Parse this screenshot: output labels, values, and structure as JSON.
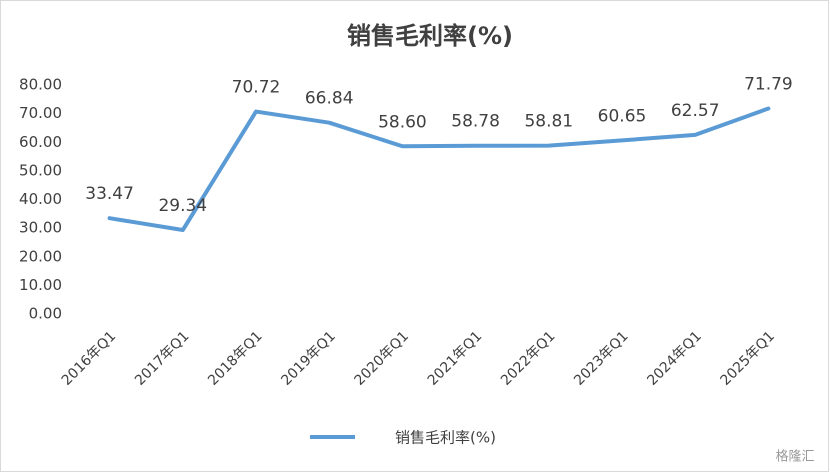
{
  "chart_data": {
    "type": "line",
    "title": "销售毛利率(%)",
    "categories": [
      "2016年Q1",
      "2017年Q1",
      "2018年Q1",
      "2019年Q1",
      "2020年Q1",
      "2021年Q1",
      "2022年Q1",
      "2023年Q1",
      "2024年Q1",
      "2025年Q1"
    ],
    "series": [
      {
        "name": "销售毛利率(%)",
        "color": "#5b9bd5",
        "values": [
          33.47,
          29.34,
          70.72,
          66.84,
          58.6,
          58.78,
          58.81,
          60.65,
          62.57,
          71.79
        ],
        "value_labels": [
          "33.47",
          "29.34",
          "70.72",
          "66.84",
          "58.60",
          "58.78",
          "58.81",
          "60.65",
          "62.57",
          "71.79"
        ]
      }
    ],
    "ylim": [
      0,
      80
    ],
    "yticks": [
      {
        "value": 0,
        "label": "0.00"
      },
      {
        "value": 10,
        "label": "10.00"
      },
      {
        "value": 20,
        "label": "20.00"
      },
      {
        "value": 30,
        "label": "30.00"
      },
      {
        "value": 40,
        "label": "40.00"
      },
      {
        "value": 50,
        "label": "50.00"
      },
      {
        "value": 60,
        "label": "60.00"
      },
      {
        "value": 70,
        "label": "70.00"
      },
      {
        "value": 80,
        "label": "80.00"
      }
    ],
    "grid": false,
    "legend": "bottom",
    "watermark": "格隆汇"
  }
}
